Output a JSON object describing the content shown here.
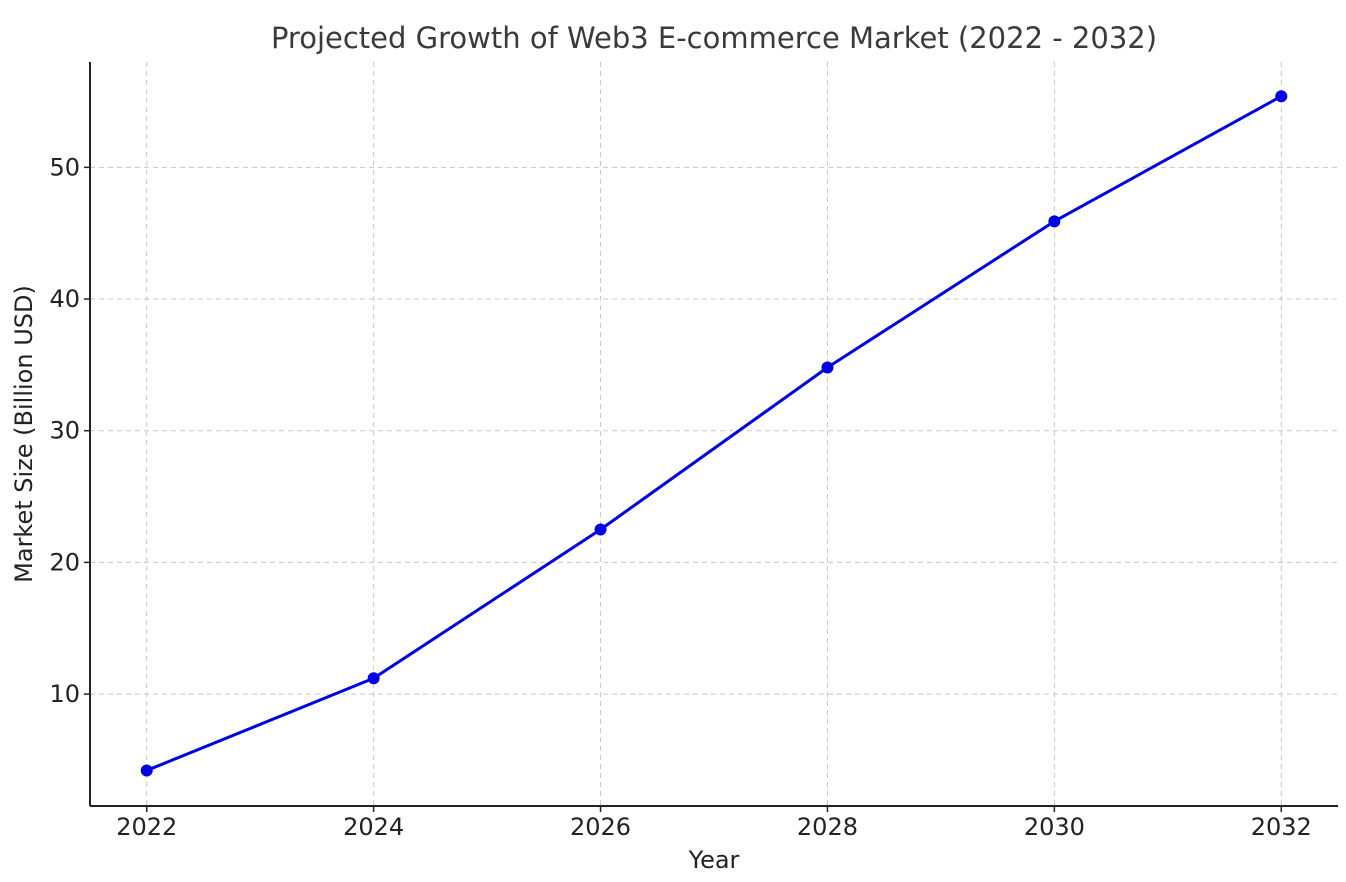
{
  "chart_data": {
    "type": "line",
    "title": "Projected Growth of Web3 E-commerce Market (2022 - 2032)",
    "xlabel": "Year",
    "ylabel": "Market Size (Billion USD)",
    "x": [
      2022,
      2024,
      2026,
      2028,
      2030,
      2032
    ],
    "x_ticks": [
      "2022",
      "2024",
      "2026",
      "2028",
      "2030",
      "2032"
    ],
    "y_ticks": [
      "10",
      "20",
      "30",
      "40",
      "50"
    ],
    "xlim": [
      2021.5,
      2032.5
    ],
    "ylim": [
      1.5,
      58
    ],
    "grid": true,
    "series": [
      {
        "values": [
          4.2,
          11.2,
          22.5,
          34.8,
          45.9,
          55.4
        ],
        "color": "#0000e6"
      }
    ]
  }
}
